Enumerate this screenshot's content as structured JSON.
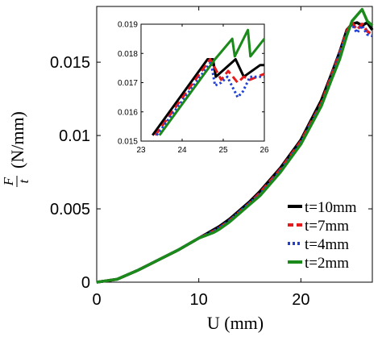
{
  "chart_data": [
    {
      "id": "main",
      "type": "line",
      "xlabel": "U (mm)",
      "ylabel": "F/t (N/mm)",
      "ylabel_parts": {
        "numerator": "F",
        "denominator": "t",
        "unit": "(N/mm)"
      },
      "xlim": [
        0,
        27
      ],
      "ylim": [
        0,
        0.0188
      ],
      "xticks": [
        0,
        10,
        20
      ],
      "xtick_labels": [
        "0",
        "10",
        "20"
      ],
      "yticks": [
        0,
        0.005,
        0.01,
        0.015
      ],
      "ytick_labels": [
        "0",
        "0.005",
        "0.01",
        "0.015"
      ],
      "grid": false,
      "legend_position": "lower-right",
      "series": [
        {
          "name": "t=10mm",
          "color": "#000000",
          "dash": "solid",
          "x": [
            0,
            2,
            4,
            6,
            8,
            10,
            11.5,
            12,
            13,
            14,
            15,
            16,
            18,
            20,
            22,
            23,
            23.8,
            24.5,
            25,
            25.5,
            26,
            26.5,
            27
          ],
          "y": [
            0,
            0.0002,
            0.0008,
            0.0015,
            0.0022,
            0.003,
            0.0036,
            0.0038,
            0.0043,
            0.0049,
            0.0055,
            0.0062,
            0.0078,
            0.0097,
            0.0124,
            0.0142,
            0.0157,
            0.0172,
            0.0176,
            0.0177,
            0.0175,
            0.0177,
            0.0172
          ]
        },
        {
          "name": "t=7mm",
          "color": "#e41a1c",
          "dash": "dash",
          "x": [
            0,
            2,
            4,
            6,
            8,
            10,
            11.5,
            12,
            13,
            14,
            15,
            16,
            18,
            20,
            22,
            23,
            23.8,
            24.5,
            25,
            25.5,
            26,
            26.5,
            27
          ],
          "y": [
            0,
            0.0002,
            0.0008,
            0.0015,
            0.0022,
            0.003,
            0.0035,
            0.0037,
            0.0042,
            0.0048,
            0.0054,
            0.0061,
            0.0077,
            0.0096,
            0.0122,
            0.0141,
            0.0156,
            0.0171,
            0.0177,
            0.0172,
            0.0176,
            0.0171,
            0.0169
          ]
        },
        {
          "name": "t=4mm",
          "color": "#1f3fd6",
          "dash": "dot",
          "x": [
            0,
            2,
            4,
            6,
            8,
            10,
            11.5,
            12,
            13,
            14,
            15,
            16,
            18,
            20,
            22,
            23,
            23.8,
            24.5,
            25,
            25.5,
            26,
            26.5,
            27
          ],
          "y": [
            0,
            0.0002,
            0.0008,
            0.0015,
            0.0022,
            0.003,
            0.0035,
            0.0037,
            0.0042,
            0.0048,
            0.0054,
            0.006,
            0.0076,
            0.0095,
            0.0121,
            0.014,
            0.0155,
            0.017,
            0.0176,
            0.017,
            0.0175,
            0.0169,
            0.0168
          ]
        },
        {
          "name": "t=2mm",
          "color": "#1a8a1a",
          "dash": "solid",
          "x": [
            0,
            2,
            4,
            6,
            8,
            10,
            11.5,
            12,
            13,
            14,
            15,
            16,
            18,
            20,
            22,
            23,
            23.8,
            24.5,
            25,
            25.5,
            26,
            26.5,
            27
          ],
          "y": [
            0,
            0.0002,
            0.0008,
            0.0015,
            0.0022,
            0.003,
            0.0034,
            0.0036,
            0.0041,
            0.0047,
            0.0053,
            0.0059,
            0.0075,
            0.0094,
            0.012,
            0.0138,
            0.0152,
            0.0168,
            0.0178,
            0.0182,
            0.0186,
            0.0178,
            0.0175
          ]
        }
      ]
    },
    {
      "id": "inset",
      "type": "line",
      "xlim": [
        23,
        26
      ],
      "ylim": [
        0.015,
        0.019
      ],
      "xticks": [
        23,
        24,
        25,
        26
      ],
      "xtick_labels": [
        "23",
        "24",
        "25",
        "26"
      ],
      "yticks": [
        0.015,
        0.016,
        0.017,
        0.018,
        0.019
      ],
      "ytick_labels": [
        "0.015",
        "0.016",
        "0.017",
        "0.018",
        "0.019"
      ],
      "series": [
        {
          "name": "t=10mm",
          "color": "#000000",
          "dash": "solid",
          "x": [
            23.28,
            24.62,
            24.75,
            24.82,
            25.3,
            25.5,
            25.9,
            26
          ],
          "y": [
            0.0152,
            0.0178,
            0.0178,
            0.0172,
            0.0178,
            0.0172,
            0.0176,
            0.0176
          ]
        },
        {
          "name": "t=7mm",
          "color": "#e41a1c",
          "dash": "dash",
          "x": [
            23.35,
            24.68,
            24.8,
            24.95,
            25.12,
            25.35,
            25.5,
            25.65,
            26
          ],
          "y": [
            0.0152,
            0.0178,
            0.0175,
            0.0171,
            0.0174,
            0.017,
            0.0172,
            0.0171,
            0.0173
          ]
        },
        {
          "name": "t=4mm",
          "color": "#1f3fd6",
          "dash": "dot",
          "x": [
            23.38,
            24.7,
            24.8,
            24.95,
            25.1,
            25.35,
            25.48,
            25.65,
            26
          ],
          "y": [
            0.0152,
            0.0177,
            0.0169,
            0.017,
            0.0172,
            0.0165,
            0.0167,
            0.0172,
            0.0172
          ]
        },
        {
          "name": "t=2mm",
          "color": "#1a8a1a",
          "dash": "solid",
          "x": [
            23.45,
            24.8,
            25.22,
            25.28,
            25.6,
            25.66,
            26
          ],
          "y": [
            0.0152,
            0.0178,
            0.0185,
            0.0179,
            0.0188,
            0.0179,
            0.0185
          ]
        }
      ]
    }
  ]
}
